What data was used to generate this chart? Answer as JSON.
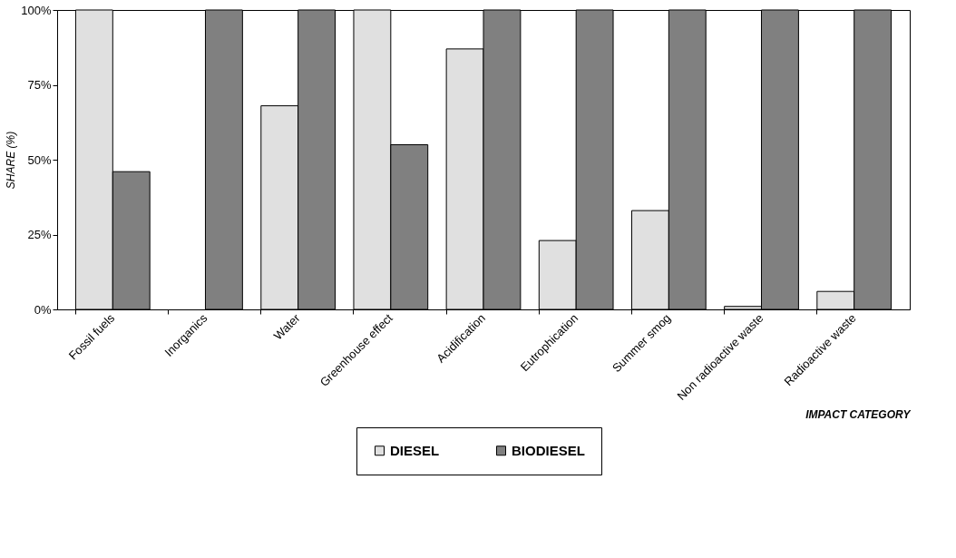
{
  "chart_data": {
    "type": "bar",
    "xlabel": "IMPACT CATEGORY",
    "ylabel": "SHARE (%)",
    "categories": [
      "Fossil fuels",
      "Inorganics",
      "Water",
      "Greenhouse effect",
      "Acidification",
      "Eutrophication",
      "Summer smog",
      "Non radioactive waste",
      "Radioactive waste"
    ],
    "series": [
      {
        "name": "DIESEL",
        "color": "#e0e0e0",
        "values": [
          100,
          0,
          68,
          100,
          87,
          23,
          33,
          1,
          6
        ]
      },
      {
        "name": "BIODIESEL",
        "color": "#808080",
        "values": [
          46,
          100,
          100,
          55,
          100,
          100,
          100,
          100,
          100
        ]
      }
    ],
    "ylim": [
      0,
      100
    ],
    "yticks": [
      {
        "value": 0,
        "label": "0%"
      },
      {
        "value": 25,
        "label": "25%"
      },
      {
        "value": 50,
        "label": "50%"
      },
      {
        "value": 75,
        "label": "75%"
      },
      {
        "value": 100,
        "label": "100%"
      }
    ],
    "grid": false,
    "legend": "bottom"
  }
}
